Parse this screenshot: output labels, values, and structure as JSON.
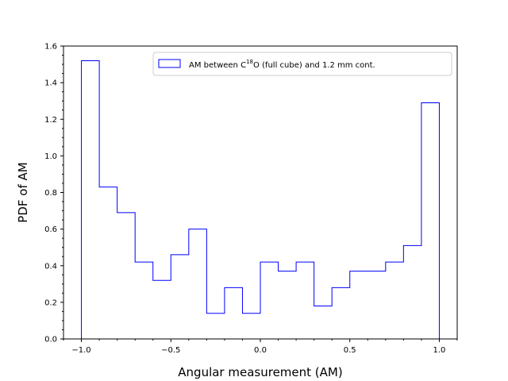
{
  "chart_data": {
    "type": "histogram",
    "xlabel": "Angular measurement (AM)",
    "ylabel": "PDF of AM",
    "xlim": [
      -1.1,
      1.1
    ],
    "ylim": [
      0.0,
      1.6
    ],
    "x_ticks": [
      -1.0,
      -0.5,
      0.0,
      0.5,
      1.0
    ],
    "x_tick_labels": [
      "−1.0",
      "−0.5",
      "0.0",
      "0.5",
      "1.0"
    ],
    "y_ticks": [
      0.0,
      0.2,
      0.4,
      0.6,
      0.8,
      1.0,
      1.2,
      1.4,
      1.6
    ],
    "y_tick_labels": [
      "0.0",
      "0.2",
      "0.4",
      "0.6",
      "0.8",
      "1.0",
      "1.2",
      "1.4",
      "1.6"
    ],
    "legend_position": "top-right",
    "grid": false,
    "series": [
      {
        "name": "AM between C18O (full cube) and 1.2 mm cont.",
        "legend_parts": {
          "pre": "AM between C",
          "sup": "18",
          "post": "O (full cube) and 1.2 mm cont."
        },
        "color": "#0000ff",
        "bin_edges": [
          -1.0,
          -0.9,
          -0.8,
          -0.7,
          -0.6,
          -0.5,
          -0.4,
          -0.3,
          -0.2,
          -0.1,
          0.0,
          0.1,
          0.2,
          0.3,
          0.4,
          0.5,
          0.6,
          0.7,
          0.8,
          0.9,
          1.0
        ],
        "values": [
          1.52,
          0.83,
          0.69,
          0.42,
          0.32,
          0.46,
          0.6,
          0.14,
          0.28,
          0.14,
          0.42,
          0.37,
          0.42,
          0.18,
          0.28,
          0.37,
          0.37,
          0.42,
          0.51,
          1.29
        ]
      }
    ]
  }
}
